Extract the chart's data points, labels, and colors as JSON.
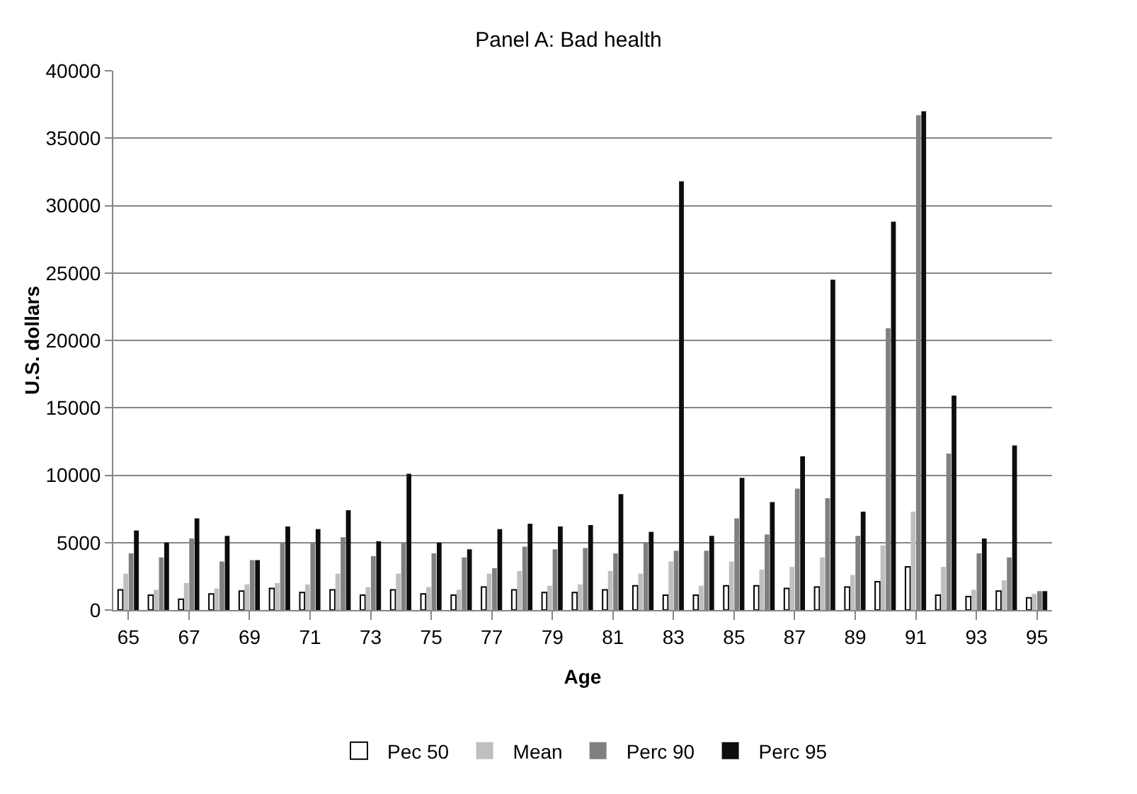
{
  "chart_data": {
    "type": "bar",
    "title": "Panel A: Bad health",
    "xlabel": "Age",
    "ylabel": "U.S. dollars",
    "categories": [
      "65",
      null,
      "67",
      null,
      "69",
      null,
      "71",
      null,
      "73",
      null,
      "75",
      null,
      "77",
      null,
      "79",
      null,
      "81",
      null,
      "83",
      null,
      "85",
      null,
      "87",
      null,
      "89",
      null,
      "91",
      null,
      "93",
      null,
      "95"
    ],
    "series": [
      {
        "name": "Pec 50",
        "color": "#ffffff",
        "values": [
          1500,
          1100,
          800,
          1200,
          1400,
          1600,
          1300,
          1500,
          1100,
          1500,
          1200,
          1100,
          1700,
          1500,
          1300,
          1300,
          1500,
          1800,
          1100,
          1100,
          1800,
          1800,
          1600,
          1700,
          1700,
          2100,
          3200,
          1100,
          1000,
          1400,
          900
        ]
      },
      {
        "name": "Mean",
        "color": "#bfbfbf",
        "values": [
          2700,
          1500,
          2000,
          1600,
          1900,
          2000,
          1900,
          2700,
          1700,
          2700,
          1700,
          1500,
          2700,
          2900,
          1800,
          1900,
          2900,
          2700,
          3600,
          1800,
          3600,
          3000,
          3200,
          3900,
          2600,
          4800,
          7300,
          3200,
          1500,
          2200,
          1200
        ]
      },
      {
        "name": "Perc 90",
        "color": "#808080",
        "values": [
          4200,
          3900,
          5300,
          3600,
          3700,
          5000,
          5000,
          5400,
          4000,
          5000,
          4200,
          3900,
          3100,
          4700,
          4500,
          4600,
          4200,
          5000,
          4400,
          4400,
          6800,
          5600,
          9000,
          8300,
          5500,
          20900,
          36700,
          11600,
          4200,
          3900,
          1400
        ]
      },
      {
        "name": "Perc 95",
        "color": "#0d0d0d",
        "values": [
          5900,
          5000,
          6800,
          5500,
          3700,
          6200,
          6000,
          7400,
          5100,
          10100,
          5000,
          4500,
          6000,
          6400,
          6200,
          6300,
          8600,
          5800,
          31800,
          5500,
          9800,
          8000,
          11400,
          24500,
          7300,
          28800,
          37000,
          15900,
          5300,
          12200,
          1400
        ]
      }
    ],
    "ylim": [
      0,
      40000
    ],
    "yticks": [
      0,
      5000,
      10000,
      15000,
      20000,
      25000,
      30000,
      35000,
      40000
    ],
    "grid": "y",
    "legend": "bottom"
  }
}
